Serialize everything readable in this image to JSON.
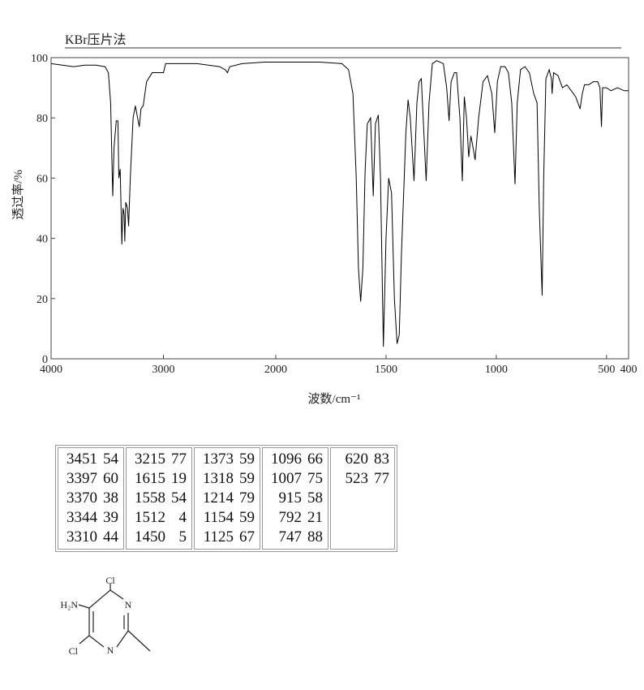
{
  "chart_data": {
    "type": "line",
    "title": "KBr压片法",
    "xlabel": "波数/cm⁻¹",
    "ylabel": "透过率/%",
    "x": [
      4000,
      3900,
      3800,
      3700,
      3600,
      3520,
      3490,
      3470,
      3455,
      3451,
      3440,
      3420,
      3405,
      3397,
      3385,
      3370,
      3360,
      3350,
      3344,
      3335,
      3320,
      3310,
      3295,
      3270,
      3250,
      3230,
      3215,
      3200,
      3180,
      3150,
      3100,
      3000,
      2980,
      2900,
      2800,
      2700,
      2600,
      2500,
      2450,
      2430,
      2410,
      2300,
      2100,
      2000,
      1800,
      1700,
      1670,
      1650,
      1635,
      1625,
      1615,
      1605,
      1595,
      1585,
      1570,
      1558,
      1548,
      1535,
      1525,
      1512,
      1500,
      1488,
      1475,
      1462,
      1450,
      1440,
      1430,
      1410,
      1400,
      1390,
      1373,
      1360,
      1350,
      1340,
      1318,
      1305,
      1290,
      1270,
      1240,
      1225,
      1214,
      1205,
      1190,
      1180,
      1165,
      1154,
      1145,
      1135,
      1125,
      1115,
      1105,
      1096,
      1080,
      1060,
      1040,
      1020,
      1007,
      995,
      980,
      960,
      945,
      930,
      915,
      905,
      890,
      870,
      850,
      830,
      815,
      805,
      792,
      785,
      775,
      760,
      750,
      747,
      740,
      720,
      700,
      680,
      660,
      640,
      625,
      620,
      610,
      600,
      580,
      560,
      540,
      530,
      523,
      518,
      500,
      480,
      450,
      420,
      400
    ],
    "series": [
      {
        "color": "#000000",
        "values": [
          98,
          97.5,
          97,
          97.5,
          97.5,
          97,
          95,
          85,
          60,
          54,
          70,
          79,
          79,
          60,
          63,
          38,
          50,
          48,
          39,
          52,
          50,
          44,
          60,
          80,
          84,
          80,
          77,
          83,
          84,
          92,
          95,
          95,
          98,
          98,
          98,
          98,
          97.5,
          97,
          96,
          95,
          97,
          98,
          98.5,
          98.5,
          98.5,
          98,
          96,
          88,
          60,
          30,
          19,
          30,
          62,
          78,
          80,
          54,
          78,
          81,
          60,
          4,
          40,
          60,
          55,
          20,
          5,
          8,
          35,
          75,
          86,
          80,
          59,
          85,
          92,
          93,
          59,
          85,
          98,
          99,
          98,
          90,
          79,
          92,
          95,
          95,
          80,
          59,
          87,
          80,
          67,
          74,
          70,
          66,
          80,
          92,
          94,
          88,
          75,
          92,
          97,
          97,
          95,
          85,
          58,
          85,
          96,
          97,
          95,
          88,
          85,
          50,
          21,
          60,
          93,
          96,
          93,
          88,
          95,
          94,
          90,
          91,
          89,
          87,
          84,
          83,
          88,
          91,
          91,
          92,
          92,
          90,
          77,
          90,
          90,
          89,
          90,
          89,
          89
        ]
      }
    ],
    "xlim": [
      4000,
      400
    ],
    "ylim": [
      0,
      100
    ],
    "xticks": [
      4000,
      3000,
      2000,
      1500,
      1000,
      500,
      400
    ],
    "yticks": [
      0,
      20,
      40,
      60,
      80,
      100
    ]
  },
  "peak_table": {
    "columns": [
      [
        [
          3451,
          54
        ],
        [
          3397,
          60
        ],
        [
          3370,
          38
        ],
        [
          3344,
          39
        ],
        [
          3310,
          44
        ]
      ],
      [
        [
          3215,
          77
        ],
        [
          1615,
          19
        ],
        [
          1558,
          54
        ],
        [
          1512,
          4
        ],
        [
          1450,
          5
        ]
      ],
      [
        [
          1373,
          59
        ],
        [
          1318,
          59
        ],
        [
          1214,
          79
        ],
        [
          1154,
          59
        ],
        [
          1125,
          67
        ]
      ],
      [
        [
          1096,
          66
        ],
        [
          1007,
          75
        ],
        [
          915,
          58
        ],
        [
          792,
          21
        ],
        [
          747,
          88
        ]
      ],
      [
        [
          620,
          83
        ],
        [
          523,
          77
        ]
      ]
    ]
  },
  "structure": {
    "labels": [
      "Cl",
      "H₂N",
      "N",
      "N",
      "Cl"
    ]
  }
}
